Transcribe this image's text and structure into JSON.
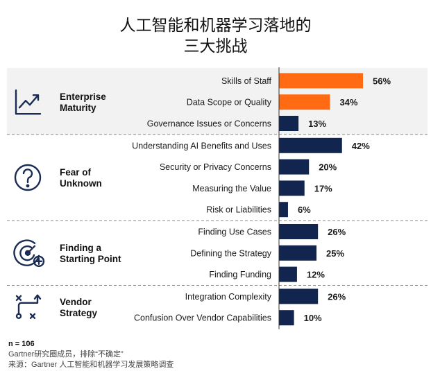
{
  "title": {
    "line1": "人工智能和机器学习落地的",
    "line2": "三大挑战"
  },
  "colors": {
    "highlight": "#ff6a13",
    "bar": "#12254f",
    "band": "#f2f2f2",
    "icon": "#1a2c54",
    "divider": "#888888"
  },
  "chart_data": {
    "type": "bar",
    "orientation": "horizontal",
    "value_suffix": "%",
    "groups": [
      {
        "name_line1": "Enterprise",
        "name_line2": "Maturity",
        "icon": "trend-chart-icon",
        "shaded": true,
        "items": [
          {
            "label": "Skills of Staff",
            "value": 56,
            "highlight": true
          },
          {
            "label": "Data Scope or Quality",
            "value": 34,
            "highlight": true
          },
          {
            "label": "Governance Issues or Concerns",
            "value": 13,
            "highlight": false
          }
        ]
      },
      {
        "name_line1": "Fear of",
        "name_line2": "Unknown",
        "icon": "question-circle-icon",
        "shaded": false,
        "items": [
          {
            "label": "Understanding AI Benefits and Uses",
            "value": 42,
            "highlight": false
          },
          {
            "label": "Security or Privacy Concerns",
            "value": 20,
            "highlight": false
          },
          {
            "label": "Measuring the Value",
            "value": 17,
            "highlight": false
          },
          {
            "label": "Risk or Liabilities",
            "value": 6,
            "highlight": false
          }
        ]
      },
      {
        "name_line1": "Finding a",
        "name_line2": "Starting Point",
        "icon": "target-icon",
        "shaded": false,
        "items": [
          {
            "label": "Finding Use Cases",
            "value": 26,
            "highlight": false
          },
          {
            "label": "Defining the Strategy",
            "value": 25,
            "highlight": false
          },
          {
            "label": "Finding Funding",
            "value": 12,
            "highlight": false
          }
        ]
      },
      {
        "name_line1": "Vendor",
        "name_line2": "Strategy",
        "icon": "strategy-play-icon",
        "shaded": false,
        "items": [
          {
            "label": "Integration Complexity",
            "value": 26,
            "highlight": false
          },
          {
            "label": "Confusion Over Vendor Capabilities",
            "value": 10,
            "highlight": false
          }
        ]
      }
    ]
  },
  "notes": {
    "sample": "n = 106",
    "line1": "Gartner研究圈成员，排除“不确定”",
    "line2": "来源：Gartner 人工智能和机器学习发展策略调查"
  }
}
